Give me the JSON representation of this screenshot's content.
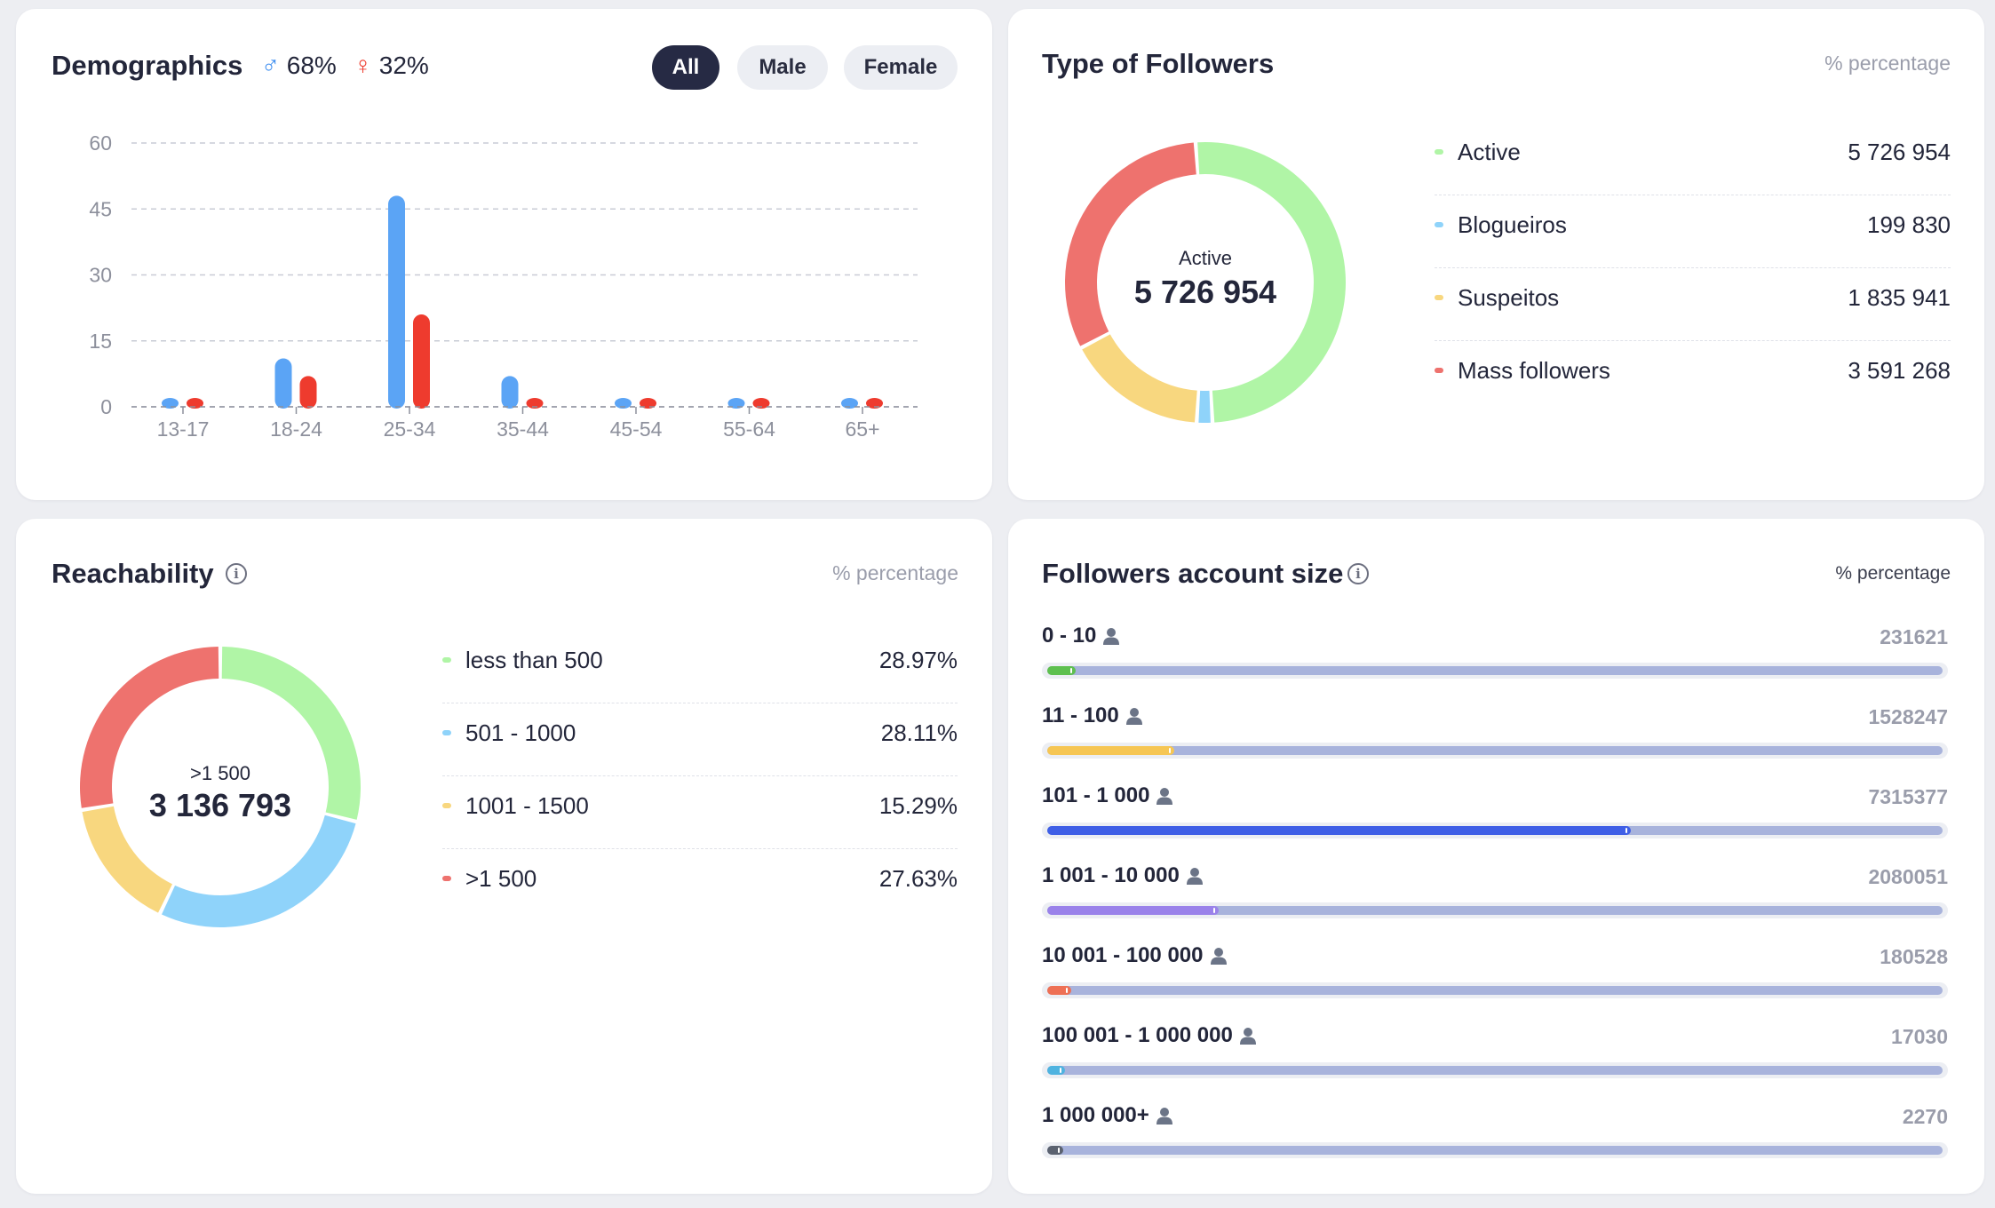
{
  "demographics": {
    "title": "Demographics",
    "male_pct": "68%",
    "female_pct": "32%",
    "male_symbol": "♂",
    "female_symbol": "♀",
    "filters": [
      "All",
      "Male",
      "Female"
    ],
    "active_filter": "All",
    "colors": {
      "male": "#5ba4f5",
      "female": "#ee3b2e"
    }
  },
  "chart_data": {
    "type": "bar",
    "categories": [
      "13-17",
      "18-24",
      "25-34",
      "35-44",
      "45-54",
      "55-64",
      "65+"
    ],
    "series": [
      {
        "values": [
          1,
          11,
          48,
          7,
          1,
          1,
          1
        ]
      },
      {
        "values": [
          1,
          7,
          21,
          1,
          1,
          1,
          1
        ]
      }
    ],
    "yticks": [
      "60",
      "45",
      "30",
      "15",
      "0"
    ],
    "ylim": [
      0,
      60
    ],
    "grid": true
  },
  "type_of_followers": {
    "title": "Type of Followers",
    "unit_label": "% percentage",
    "center_label": "Active",
    "center_value": "5 726 954",
    "items": [
      {
        "label": "Active",
        "value": "5 726 954",
        "share": 50.3,
        "color": "#b0f5a6"
      },
      {
        "label": "Blogueiros",
        "value": "199 830",
        "share": 1.8,
        "color": "#8fd3fa"
      },
      {
        "label": "Suspeitos",
        "value": "1 835 941",
        "share": 16.3,
        "color": "#f8d77f"
      },
      {
        "label": "Mass followers",
        "value": "3 591 268",
        "share": 31.6,
        "color": "#ee726e"
      }
    ]
  },
  "reachability": {
    "title": "Reachability",
    "unit_label": "% percentage",
    "center_label": ">1 500",
    "center_value": "3 136 793",
    "items": [
      {
        "label": "less than 500",
        "value": "28.97%",
        "share": 28.97,
        "color": "#b0f5a6"
      },
      {
        "label": "501 - 1000",
        "value": "28.11%",
        "share": 28.11,
        "color": "#8fd3fa"
      },
      {
        "label": "1001 - 1500",
        "value": "15.29%",
        "share": 15.29,
        "color": "#f8d77f"
      },
      {
        "label": ">1 500",
        "value": "27.63%",
        "share": 27.63,
        "color": "#ee726e"
      }
    ]
  },
  "account_size": {
    "title": "Followers account size",
    "unit_label": "% percentage",
    "rows": [
      {
        "label": "0 - 10",
        "value": "231621",
        "fraction": 0.02,
        "color": "#5ec04f"
      },
      {
        "label": "11 - 100",
        "value": "1528247",
        "fraction": 0.13,
        "color": "#f6c654"
      },
      {
        "label": "101 - 1 000",
        "value": "7315377",
        "fraction": 0.64,
        "color": "#3f5fe6"
      },
      {
        "label": "1 001 - 10 000",
        "value": "2080051",
        "fraction": 0.18,
        "color": "#9a82ea"
      },
      {
        "label": "10 001 - 100 000",
        "value": "180528",
        "fraction": 0.015,
        "color": "#ee7055"
      },
      {
        "label": "100 001 - 1 000 000",
        "value": "17030",
        "fraction": 0.008,
        "color": "#4fb3e0"
      },
      {
        "label": "1 000 000+",
        "value": "2270",
        "fraction": 0.006,
        "color": "#5b6270"
      }
    ]
  }
}
